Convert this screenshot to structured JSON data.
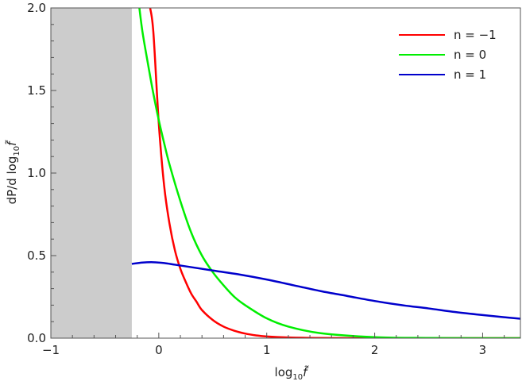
{
  "chart_data": {
    "type": "line",
    "xlim": [
      -1,
      3.35
    ],
    "ylim": [
      0,
      2
    ],
    "x_ticks": [
      -1,
      0,
      1,
      2,
      3
    ],
    "x_tick_labels": [
      "−1",
      "0",
      "1",
      "2",
      "3"
    ],
    "y_ticks": [
      0,
      0.5,
      1,
      1.5,
      2
    ],
    "y_tick_labels": [
      "0.0",
      "0.5",
      "1.0",
      "1.5",
      "2.0"
    ],
    "xlabel_main": "log",
    "xlabel_sub": "10",
    "xlabel_var": "f̃",
    "ylabel_main": "dP/d log",
    "ylabel_sub": "10",
    "ylabel_var": "f̃",
    "shaded_region": {
      "x_from": -1,
      "x_to": -0.25,
      "color": "#cccccc"
    },
    "legend_position": "top-right",
    "grid": false,
    "series": [
      {
        "name": "n = −1",
        "color": "#ff0000",
        "x": [
          -0.08,
          -0.05,
          0.0,
          0.05,
          0.1,
          0.15,
          0.2,
          0.25,
          0.3,
          0.35,
          0.4,
          0.5,
          0.6,
          0.7,
          0.8,
          0.9,
          1.0,
          1.2,
          1.5,
          2.0,
          2.5,
          3.0,
          3.35
        ],
        "y": [
          2.0,
          1.85,
          1.3,
          0.92,
          0.69,
          0.53,
          0.42,
          0.34,
          0.27,
          0.22,
          0.17,
          0.11,
          0.07,
          0.045,
          0.028,
          0.017,
          0.01,
          0.004,
          0.001,
          0.0,
          0.0,
          0.0,
          0.0
        ]
      },
      {
        "name": "n = 0",
        "color": "#00ee00",
        "x": [
          -0.18,
          -0.15,
          -0.1,
          -0.05,
          0.0,
          0.05,
          0.1,
          0.2,
          0.3,
          0.4,
          0.5,
          0.6,
          0.7,
          0.8,
          1.0,
          1.2,
          1.5,
          2.0,
          2.5,
          3.0,
          3.35
        ],
        "y": [
          2.0,
          1.85,
          1.66,
          1.48,
          1.32,
          1.18,
          1.05,
          0.83,
          0.64,
          0.5,
          0.4,
          0.32,
          0.25,
          0.2,
          0.12,
          0.07,
          0.03,
          0.006,
          0.001,
          0.0,
          0.0
        ]
      },
      {
        "name": "n = 1",
        "color": "#0000cc",
        "x": [
          -0.25,
          -0.15,
          -0.05,
          0.05,
          0.15,
          0.3,
          0.5,
          0.75,
          1.0,
          1.25,
          1.5,
          1.75,
          2.0,
          2.25,
          2.5,
          2.75,
          3.0,
          3.2,
          3.35
        ],
        "y": [
          0.45,
          0.458,
          0.46,
          0.455,
          0.445,
          0.43,
          0.41,
          0.385,
          0.355,
          0.32,
          0.285,
          0.255,
          0.225,
          0.2,
          0.18,
          0.158,
          0.14,
          0.127,
          0.118
        ]
      }
    ]
  }
}
